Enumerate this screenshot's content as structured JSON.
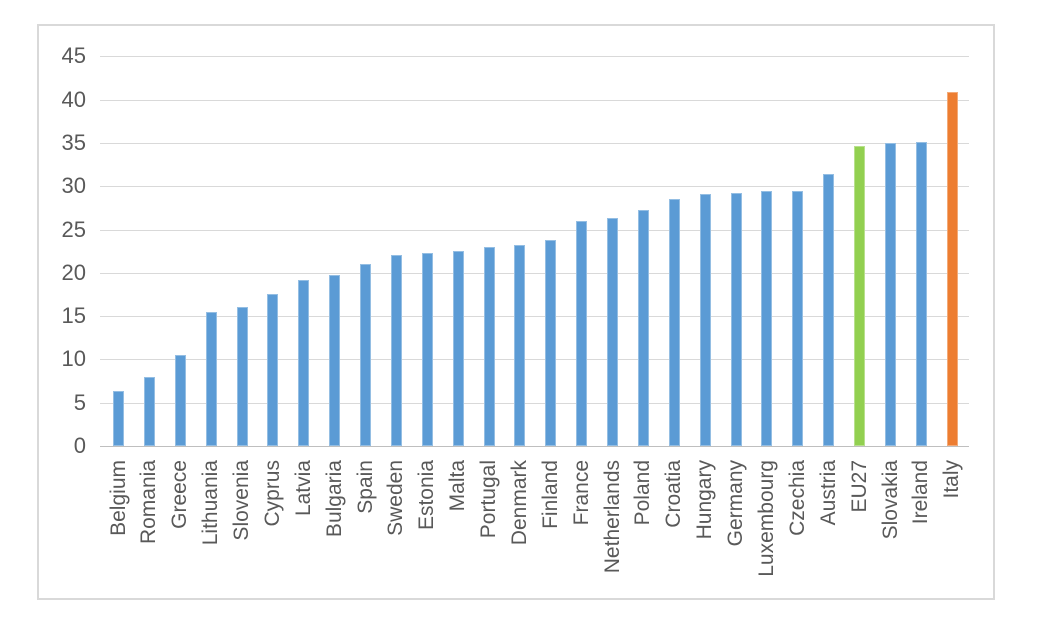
{
  "chart_data": {
    "type": "bar",
    "title": "",
    "legend": "none",
    "grid": true,
    "ylim": [
      0,
      45
    ],
    "yticks": [
      0,
      5,
      10,
      15,
      20,
      25,
      30,
      35,
      40,
      45
    ],
    "categories": [
      "Belgium",
      "Romania",
      "Greece",
      "Lithuania",
      "Slovenia",
      "Cyprus",
      "Latvia",
      "Bulgaria",
      "Spain",
      "Sweden",
      "Estonia",
      "Malta",
      "Portugal",
      "Denmark",
      "Finland",
      "France",
      "Netherlands",
      "Poland",
      "Croatia",
      "Hungary",
      "Germany",
      "Luxembourg",
      "Czechia",
      "Austria",
      "EU27",
      "Slovakia",
      "Ireland",
      "Italy"
    ],
    "values": [
      6.3,
      8.0,
      10.5,
      15.5,
      16.1,
      17.5,
      19.2,
      19.7,
      21.0,
      22.0,
      22.3,
      22.5,
      23.0,
      23.2,
      23.8,
      26.0,
      26.3,
      27.2,
      28.5,
      29.1,
      29.2,
      29.4,
      29.5,
      31.4,
      34.6,
      35.0,
      35.1,
      40.9
    ],
    "bar_colors": [
      "#5B9BD5",
      "#5B9BD5",
      "#5B9BD5",
      "#5B9BD5",
      "#5B9BD5",
      "#5B9BD5",
      "#5B9BD5",
      "#5B9BD5",
      "#5B9BD5",
      "#5B9BD5",
      "#5B9BD5",
      "#5B9BD5",
      "#5B9BD5",
      "#5B9BD5",
      "#5B9BD5",
      "#5B9BD5",
      "#5B9BD5",
      "#5B9BD5",
      "#5B9BD5",
      "#5B9BD5",
      "#5B9BD5",
      "#5B9BD5",
      "#5B9BD5",
      "#5B9BD5",
      "#92D050",
      "#5B9BD5",
      "#5B9BD5",
      "#ED7D31"
    ],
    "highlighted_bars": {
      "EU27": "#92D050",
      "Italy": "#ED7D31"
    },
    "default_bar_color": "#5B9BD5",
    "grid_color": "#D9D9D9",
    "axis_line_color": "#BFBFBF",
    "frame_border_color": "#D9D9D9",
    "label_color": "#595959"
  }
}
